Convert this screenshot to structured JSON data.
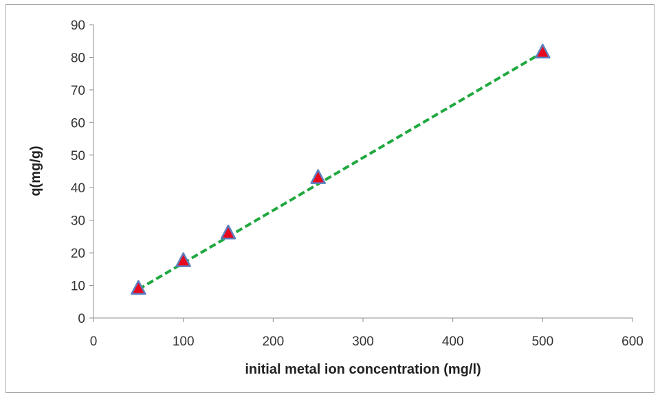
{
  "chart_data": {
    "type": "scatter",
    "xlabel": "initial metal ion concentration (mg/l)",
    "ylabel": "q(mg/g)",
    "xlim": [
      0,
      600
    ],
    "ylim": [
      0,
      90
    ],
    "xticks": [
      0,
      100,
      200,
      300,
      400,
      500,
      600
    ],
    "yticks": [
      0,
      10,
      20,
      30,
      40,
      50,
      60,
      70,
      80,
      90
    ],
    "grid": false,
    "legend": "none",
    "series": [
      {
        "marker": "triangle",
        "marker_fill": "#e8091e",
        "marker_edge": "#5b7fc0",
        "x": [
          50,
          100,
          150,
          250,
          500
        ],
        "y": [
          9,
          17.5,
          26,
          43,
          81.5
        ]
      }
    ],
    "trendline": {
      "style": "dashed",
      "color": "#1fa83f",
      "x": [
        50,
        500
      ],
      "y": [
        8.8,
        81.5
      ]
    }
  }
}
